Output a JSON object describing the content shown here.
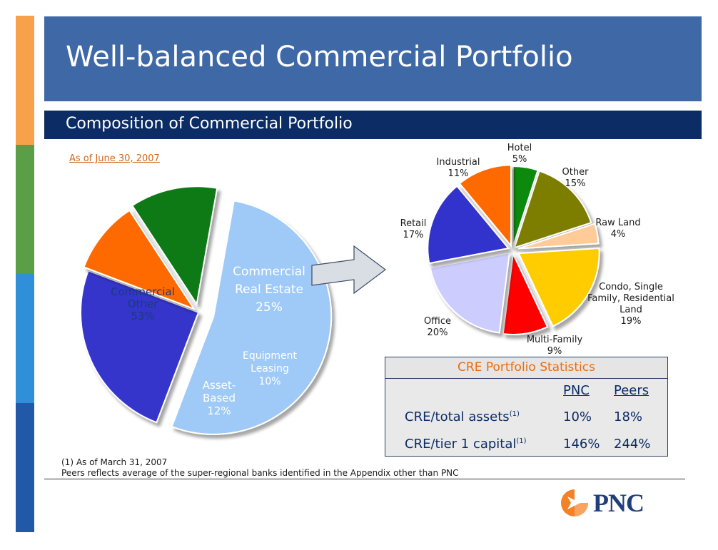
{
  "slide": {
    "title": "Well-balanced Commercial Portfolio",
    "subtitle": "Composition of Commercial Portfolio",
    "as_of": "As of June 30, 2007"
  },
  "colors": {
    "side_bar": [
      "#f7a24b",
      "#5a9e48",
      "#2f8fd8",
      "#2258a8"
    ],
    "title_band": "#3e68a6",
    "subtitle_band": "#0b2c64",
    "accent_orange": "#e86c10"
  },
  "chart_data": [
    {
      "type": "pie",
      "slices": [
        {
          "label_lines": [
            "Commercial",
            "Other",
            "53%"
          ],
          "value": 53,
          "color": "#9fcaf8",
          "text_color": "#1a3a7a"
        },
        {
          "label_lines": [
            "Commercial",
            "Real Estate",
            "25%"
          ],
          "value": 25,
          "color": "#3434cc",
          "text_color": "#ffffff"
        },
        {
          "label_lines": [
            "Equipment",
            "Leasing",
            "10%"
          ],
          "value": 10,
          "color": "#ff6a00",
          "text_color": "#ffffff"
        },
        {
          "label_lines": [
            "Asset-",
            "Based",
            "12%"
          ],
          "value": 12,
          "color": "#0a7a12",
          "text_color": "#ffffff"
        }
      ]
    },
    {
      "type": "pie",
      "slices": [
        {
          "label_lines": [
            "Hotel",
            "5%"
          ],
          "value": 5,
          "color": "#0a8a10"
        },
        {
          "label_lines": [
            "Other",
            "15%"
          ],
          "value": 15,
          "color": "#7d7d00"
        },
        {
          "label_lines": [
            "Raw Land",
            "4%"
          ],
          "value": 4,
          "color": "#ffcc99"
        },
        {
          "label_lines": [
            "Condo, Single",
            "Family, Residential",
            "Land",
            "19%"
          ],
          "value": 19,
          "color": "#ffcc00"
        },
        {
          "label_lines": [
            "Multi-Family",
            "9%"
          ],
          "value": 9,
          "color": "#ff0000"
        },
        {
          "label_lines": [
            "Office",
            "20%"
          ],
          "value": 20,
          "color": "#ccccff"
        },
        {
          "label_lines": [
            "Retail",
            "17%"
          ],
          "value": 17,
          "color": "#3333cc"
        },
        {
          "label_lines": [
            "Industrial",
            "11%"
          ],
          "value": 11,
          "color": "#ff6a00"
        }
      ]
    },
    {
      "type": "table",
      "title": "CRE Portfolio Statistics",
      "columns": [
        "PNC",
        "Peers"
      ],
      "rows": [
        {
          "label": "CRE/total assets",
          "sup": "(1)",
          "values": [
            "10%",
            "18%"
          ]
        },
        {
          "label": "CRE/tier 1 capital",
          "sup": "(1)",
          "values": [
            "146%",
            "244%"
          ]
        }
      ]
    }
  ],
  "footnotes": {
    "note1": "(1) As of March 31, 2007",
    "note2": "Peers reflects average of the super-regional banks identified in the Appendix other than PNC"
  },
  "logo": {
    "text": "PNC",
    "icon": "pnc-logo-icon"
  }
}
